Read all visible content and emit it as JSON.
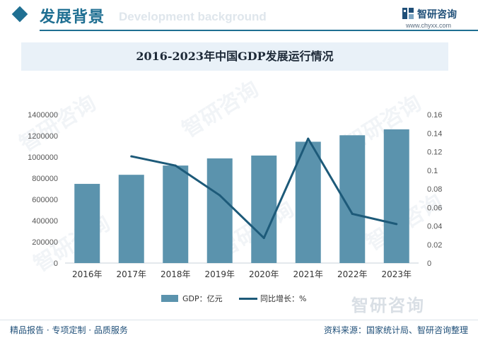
{
  "header": {
    "title": "发展背景",
    "subtitle": "Development background",
    "accent_color": "#1f6f92"
  },
  "brand": {
    "name": "智研咨询",
    "url": "www.chyxx.com",
    "logo_icon": "zhiyan-logo-icon"
  },
  "watermark": {
    "text": "智研咨询"
  },
  "chart_data": {
    "type": "bar",
    "title": "2016-2023年中国GDP发展运行情况",
    "categories": [
      "2016年",
      "2017年",
      "2018年",
      "2019年",
      "2020年",
      "2021年",
      "2022年",
      "2023年"
    ],
    "series": [
      {
        "name": "GDP：亿元",
        "type": "bar",
        "axis": "left",
        "color": "#5b93ad",
        "values": [
          746395,
          832036,
          919281,
          986515,
          1013567,
          1143670,
          1204724,
          1260582
        ]
      },
      {
        "name": "同比增长：%",
        "type": "line",
        "axis": "right",
        "color": "#1d5a79",
        "values": [
          null,
          0.115,
          0.105,
          0.073,
          0.027,
          0.134,
          0.053,
          0.042
        ]
      }
    ],
    "y_left": {
      "min": 0,
      "max": 1400000,
      "step": 200000,
      "ticks": [
        "0",
        "200000",
        "400000",
        "600000",
        "800000",
        "1000000",
        "1200000",
        "1400000"
      ]
    },
    "y_right": {
      "min": 0,
      "max": 0.16,
      "step": 0.02,
      "ticks": [
        "0",
        "0.02",
        "0.04",
        "0.06",
        "0.08",
        "0.1",
        "0.12",
        "0.14",
        "0.16"
      ]
    },
    "grid": false,
    "legend_position": "bottom"
  },
  "footer": {
    "left": "精品报告 · 专项定制 · 品质服务",
    "right": "资料来源：国家统计局、智研咨询整理"
  }
}
